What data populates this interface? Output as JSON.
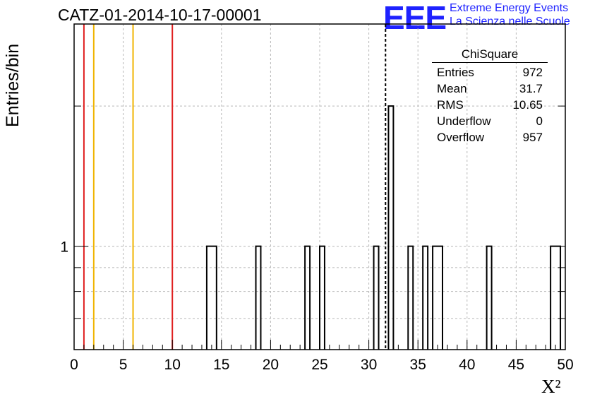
{
  "page": {
    "title": "CATZ-01-2014-10-17-00001",
    "logo": "EEE",
    "logo_line1": "Extreme Energy Events",
    "logo_line2": "La Scienza nelle Scuole"
  },
  "stats_box": {
    "title": "ChiSquare",
    "rows": [
      {
        "label": "Entries",
        "value": "972"
      },
      {
        "label": "Mean",
        "value": "31.7"
      },
      {
        "label": "RMS",
        "value": "10.65"
      },
      {
        "label": "Underflow",
        "value": "0"
      },
      {
        "label": "Overflow",
        "value": "957"
      }
    ]
  },
  "chart_data": {
    "type": "bar",
    "title": "CATZ-01-2014-10-17-00001",
    "xlabel": "X²",
    "ylabel": "Entries/bin",
    "xlim": [
      0,
      50
    ],
    "ylim_log": [
      0.6,
      3.0
    ],
    "log_y": true,
    "grid": true,
    "x_ticks": [
      "0",
      "5",
      "10",
      "15",
      "20",
      "25",
      "30",
      "35",
      "40",
      "45",
      "50"
    ],
    "y_ticks": [
      "1"
    ],
    "bin_width": 0.5,
    "bins": [
      {
        "x_low": 13.5,
        "x_high": 14.5,
        "count": 1
      },
      {
        "x_low": 18.5,
        "x_high": 19.0,
        "count": 1
      },
      {
        "x_low": 23.5,
        "x_high": 24.0,
        "count": 1
      },
      {
        "x_low": 25.0,
        "x_high": 25.5,
        "count": 1
      },
      {
        "x_low": 30.5,
        "x_high": 31.0,
        "count": 1
      },
      {
        "x_low": 32.0,
        "x_high": 32.5,
        "count": 2
      },
      {
        "x_low": 34.0,
        "x_high": 34.5,
        "count": 1
      },
      {
        "x_low": 35.5,
        "x_high": 36.0,
        "count": 1
      },
      {
        "x_low": 36.5,
        "x_high": 37.5,
        "count": 1
      },
      {
        "x_low": 42.0,
        "x_high": 42.5,
        "count": 1
      },
      {
        "x_low": 48.5,
        "x_high": 49.5,
        "count": 1
      }
    ],
    "reference_lines": [
      {
        "x": 1.0,
        "color": "#e02020",
        "style": "solid"
      },
      {
        "x": 2.0,
        "color": "#f0b400",
        "style": "solid"
      },
      {
        "x": 6.0,
        "color": "#f0b400",
        "style": "solid"
      },
      {
        "x": 10.0,
        "color": "#e02020",
        "style": "solid"
      },
      {
        "x": 31.7,
        "color": "#000000",
        "style": "dashed"
      }
    ]
  }
}
